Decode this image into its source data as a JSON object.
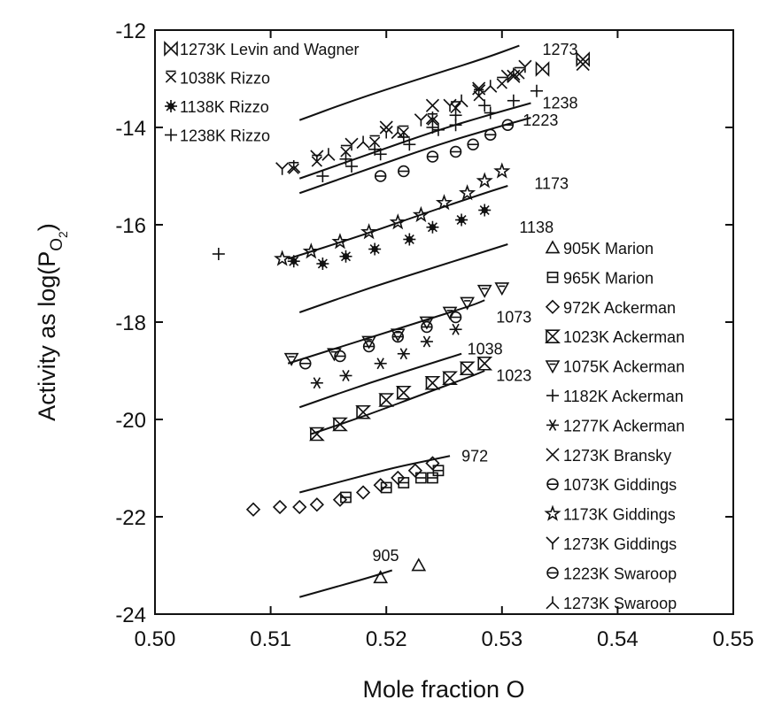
{
  "chart_data": {
    "type": "scatter",
    "title": "",
    "xlabel": "Mole fraction O",
    "ylabel": "Activity as log(P",
    "ylabel_sub": "O",
    "ylabel_sub2": "2",
    "ylabel_close": ")",
    "xlim": [
      0.5,
      0.55
    ],
    "ylim": [
      -24,
      -12
    ],
    "xticks": [
      0.5,
      0.51,
      0.52,
      0.53,
      0.54,
      0.55
    ],
    "xtick_labels": [
      "0.50",
      "0.51",
      "0.52",
      "0.53",
      "0.54",
      "0.55"
    ],
    "yticks": [
      -24,
      -22,
      -20,
      -18,
      -16,
      -14,
      -12
    ],
    "ytick_labels": [
      "-24",
      "-22",
      "-20",
      "-18",
      "-16",
      "-14",
      "-12"
    ],
    "grid": false,
    "lines": [
      {
        "name": "1273",
        "x": [
          0.5125,
          0.5165,
          0.5205,
          0.5245,
          0.5285,
          0.5315
        ],
        "y": [
          -13.85,
          -13.5,
          -13.18,
          -12.88,
          -12.58,
          -12.32
        ],
        "label_at": [
          0.5335,
          -12.4
        ]
      },
      {
        "name": "1238",
        "x": [
          0.5125,
          0.5185,
          0.5245,
          0.5295,
          0.5325
        ],
        "y": [
          -15.05,
          -14.55,
          -14.05,
          -13.7,
          -13.5
        ],
        "label_at": [
          0.5335,
          -13.5
        ]
      },
      {
        "name": "1223",
        "x": [
          0.5125,
          0.5185,
          0.5245,
          0.5295,
          0.5325
        ],
        "y": [
          -15.35,
          -14.85,
          -14.35,
          -14.0,
          -13.8
        ],
        "label_at": [
          0.5318,
          -13.85
        ]
      },
      {
        "name": "1173",
        "x": [
          0.5115,
          0.5175,
          0.5235,
          0.5285,
          0.5305
        ],
        "y": [
          -16.7,
          -16.25,
          -15.75,
          -15.35,
          -15.2
        ],
        "label_at": [
          0.5328,
          -15.15
        ]
      },
      {
        "name": "1138",
        "x": [
          0.5125,
          0.5185,
          0.5245,
          0.5285,
          0.5305
        ],
        "y": [
          -17.8,
          -17.3,
          -16.85,
          -16.55,
          -16.4
        ],
        "label_at": [
          0.5315,
          -16.05
        ]
      },
      {
        "name": "1073",
        "x": [
          0.5115,
          0.5175,
          0.5235,
          0.5275,
          0.5285
        ],
        "y": [
          -18.85,
          -18.4,
          -17.95,
          -17.65,
          -17.55
        ],
        "label_at": [
          0.5295,
          -17.9
        ]
      },
      {
        "name": "1038",
        "x": [
          0.5125,
          0.5185,
          0.5245,
          0.5265
        ],
        "y": [
          -19.75,
          -19.25,
          -18.8,
          -18.65
        ],
        "label_at": [
          0.527,
          -18.55
        ]
      },
      {
        "name": "1023",
        "x": [
          0.5135,
          0.5185,
          0.5235,
          0.5275,
          0.5285
        ],
        "y": [
          -20.3,
          -19.9,
          -19.45,
          -19.1,
          -19.0
        ],
        "label_at": [
          0.5295,
          -19.1
        ]
      },
      {
        "name": "972",
        "x": [
          0.5125,
          0.5165,
          0.5205,
          0.5235,
          0.5255
        ],
        "y": [
          -21.5,
          -21.25,
          -21.0,
          -20.85,
          -20.75
        ],
        "label_at": [
          0.5265,
          -20.75
        ]
      },
      {
        "name": "905",
        "x": [
          0.5125,
          0.5155,
          0.5185,
          0.5205
        ],
        "y": [
          -23.65,
          -23.45,
          -23.25,
          -23.1
        ],
        "label_at": [
          0.5188,
          -22.8
        ]
      }
    ],
    "series": [
      {
        "name": "1273K Levin and Wagner",
        "marker": "bowtie",
        "x": [
          0.5335,
          0.537
        ],
        "y": [
          -12.8,
          -12.6
        ]
      },
      {
        "name": "1038K Rizzo",
        "marker": "xbar",
        "x": [
          0.512,
          0.514,
          0.5165,
          0.519,
          0.5215,
          0.524,
          0.526,
          0.528,
          0.53,
          0.5315
        ],
        "y": [
          -14.85,
          -14.7,
          -14.5,
          -14.3,
          -14.1,
          -13.85,
          -13.6,
          -13.35,
          -13.1,
          -12.9
        ]
      },
      {
        "name": "1138K Rizzo",
        "marker": "star8",
        "x": [
          0.512,
          0.5145,
          0.5165,
          0.519,
          0.522,
          0.524,
          0.5265,
          0.5285
        ],
        "y": [
          -16.75,
          -16.8,
          -16.65,
          -16.5,
          -16.3,
          -16.05,
          -15.9,
          -15.7
        ]
      },
      {
        "name": "1238K Rizzo",
        "marker": "plus",
        "x": [
          0.5055,
          0.5145,
          0.517,
          0.5195,
          0.522,
          0.5245,
          0.526,
          0.529,
          0.531,
          0.533
        ],
        "y": [
          -16.6,
          -15.0,
          -14.8,
          -14.55,
          -14.35,
          -14.05,
          -13.95,
          -13.7,
          -13.45,
          -13.25
        ]
      },
      {
        "name": "905K Marion",
        "marker": "triangle",
        "x": [
          0.5195,
          0.5228
        ],
        "y": [
          -23.25,
          -23.0
        ]
      },
      {
        "name": "965K Marion",
        "marker": "square",
        "x": [
          0.5165,
          0.52,
          0.5215,
          0.523,
          0.5245,
          0.524
        ],
        "y": [
          -21.6,
          -21.4,
          -21.3,
          -21.2,
          -21.05,
          -21.2
        ]
      },
      {
        "name": "972K Ackerman",
        "marker": "diamond",
        "x": [
          0.5085,
          0.5108,
          0.5125,
          0.514,
          0.516,
          0.518,
          0.5195,
          0.521,
          0.5225,
          0.524
        ],
        "y": [
          -21.85,
          -21.8,
          -21.8,
          -21.75,
          -21.65,
          -21.5,
          -21.35,
          -21.2,
          -21.05,
          -20.9
        ]
      },
      {
        "name": "1023K Ackerman",
        "marker": "hourglass",
        "x": [
          0.514,
          0.516,
          0.518,
          0.52,
          0.5215,
          0.524,
          0.5255,
          0.527,
          0.5285
        ],
        "y": [
          -20.3,
          -20.1,
          -19.85,
          -19.6,
          -19.45,
          -19.25,
          -19.15,
          -18.95,
          -18.85
        ]
      },
      {
        "name": "1075K Ackerman",
        "marker": "triangle-down",
        "x": [
          0.5118,
          0.5155,
          0.5185,
          0.521,
          0.5235,
          0.5255,
          0.527,
          0.5285,
          0.53
        ],
        "y": [
          -18.75,
          -18.65,
          -18.4,
          -18.25,
          -18.0,
          -17.8,
          -17.6,
          -17.35,
          -17.3
        ]
      },
      {
        "name": "1182K Ackerman",
        "marker": "plus",
        "x": [
          0.5165,
          0.519,
          0.5215,
          0.524,
          0.526,
          0.5285
        ],
        "y": [
          -14.65,
          -14.45,
          -14.2,
          -14.0,
          -13.75,
          -13.55
        ]
      },
      {
        "name": "1277K Ackerman",
        "marker": "asterisk",
        "x": [
          0.514,
          0.5165,
          0.5195,
          0.5215,
          0.5235,
          0.526
        ],
        "y": [
          -19.25,
          -19.1,
          -18.85,
          -18.65,
          -18.4,
          -18.15
        ]
      },
      {
        "name": "1273K Bransky",
        "marker": "x",
        "x": [
          0.52,
          0.524,
          0.528,
          0.531,
          0.537
        ],
        "y": [
          -14.0,
          -13.55,
          -13.2,
          -12.95,
          -12.7
        ]
      },
      {
        "name": "1073K Giddings",
        "marker": "circle-bar",
        "x": [
          0.513,
          0.516,
          0.5185,
          0.521,
          0.5235,
          0.526
        ],
        "y": [
          -18.85,
          -18.7,
          -18.5,
          -18.3,
          -18.1,
          -17.9
        ]
      },
      {
        "name": "1173K Giddings",
        "marker": "star",
        "x": [
          0.511,
          0.5135,
          0.516,
          0.5185,
          0.521,
          0.523,
          0.525,
          0.527,
          0.5285,
          0.53
        ],
        "y": [
          -16.7,
          -16.55,
          -16.35,
          -16.15,
          -15.95,
          -15.8,
          -15.55,
          -15.35,
          -15.1,
          -14.9
        ]
      },
      {
        "name": "1273K Giddings",
        "marker": "y",
        "x": [
          0.511,
          0.514,
          0.517,
          0.52,
          0.523,
          0.5255,
          0.528,
          0.5305,
          0.532
        ],
        "y": [
          -14.85,
          -14.6,
          -14.35,
          -14.1,
          -13.85,
          -13.55,
          -13.25,
          -12.95,
          -12.75
        ]
      },
      {
        "name": "1223K Swaroop",
        "marker": "circle-bar",
        "x": [
          0.5195,
          0.5215,
          0.524,
          0.526,
          0.5275,
          0.529,
          0.5305
        ],
        "y": [
          -15.0,
          -14.9,
          -14.6,
          -14.5,
          -14.35,
          -14.15,
          -13.95
        ]
      },
      {
        "name": "1273K Swaroop",
        "marker": "lambda",
        "x": [
          0.512,
          0.515,
          0.518,
          0.521,
          0.524,
          0.5265,
          0.529,
          0.531
        ],
        "y": [
          -14.8,
          -14.55,
          -14.3,
          -14.1,
          -13.8,
          -13.45,
          -13.15,
          -12.9
        ]
      }
    ],
    "legend_top_left": [
      "1273K Levin and Wagner",
      "1038K Rizzo",
      "1138K Rizzo",
      "1238K Rizzo"
    ],
    "legend_right": [
      "905K Marion",
      "965K Marion",
      "972K Ackerman",
      "1023K Ackerman",
      "1075K Ackerman",
      "1182K Ackerman",
      "1277K Ackerman",
      "1273K Bransky",
      "1073K Giddings",
      "1173K Giddings",
      "1273K Giddings",
      "1223K Swaroop",
      "1273K Swaroop"
    ]
  }
}
